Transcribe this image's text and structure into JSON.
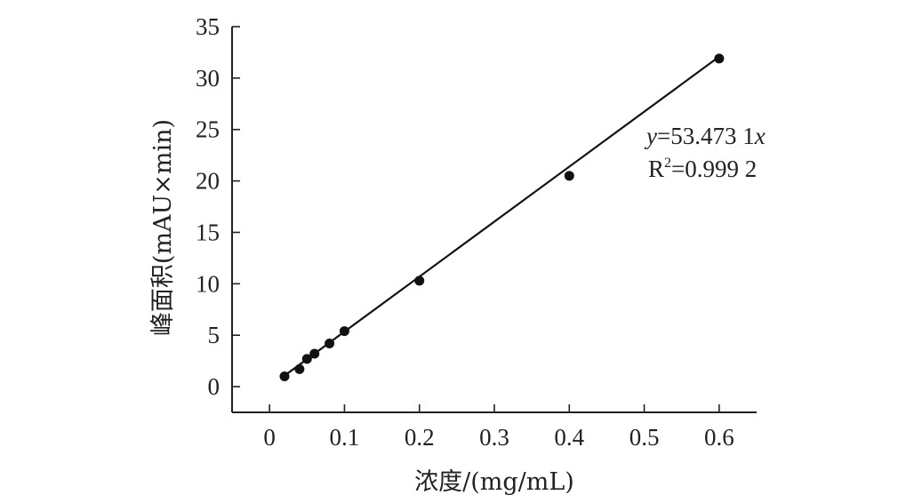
{
  "chart_data": {
    "type": "scatter",
    "title": "",
    "xlabel": "浓度/(mg/mL)",
    "ylabel": "峰面积(mAU×min)",
    "xlim": [
      -0.05,
      0.65
    ],
    "ylim": [
      -2.5,
      35
    ],
    "xticks": [
      0,
      0.1,
      0.2,
      0.3,
      0.4,
      0.5,
      0.6
    ],
    "xtick_labels": [
      "0",
      "0.1",
      "0.2",
      "0.3",
      "0.4",
      "0.5",
      "0.6"
    ],
    "yticks": [
      0,
      5,
      10,
      15,
      20,
      25,
      30,
      35
    ],
    "ytick_labels": [
      "0",
      "5",
      "10",
      "15",
      "20",
      "25",
      "30",
      "35"
    ],
    "grid": false,
    "series": [
      {
        "x": [
          0.02,
          0.04,
          0.05,
          0.06,
          0.08,
          0.1,
          0.2,
          0.4,
          0.6
        ],
        "y": [
          1.0,
          1.7,
          2.7,
          3.2,
          4.2,
          5.4,
          10.3,
          20.5,
          31.9
        ]
      }
    ],
    "fit_line": {
      "x": [
        0.02,
        0.6
      ],
      "y": [
        1.07,
        32.08
      ]
    },
    "annotations": {
      "equation_var_y": "y",
      "equation_eq": "=53.473 1",
      "equation_var_x": "x",
      "r2_base": "R",
      "r2_sup": "2",
      "r2_value": "=0.999 2"
    }
  }
}
